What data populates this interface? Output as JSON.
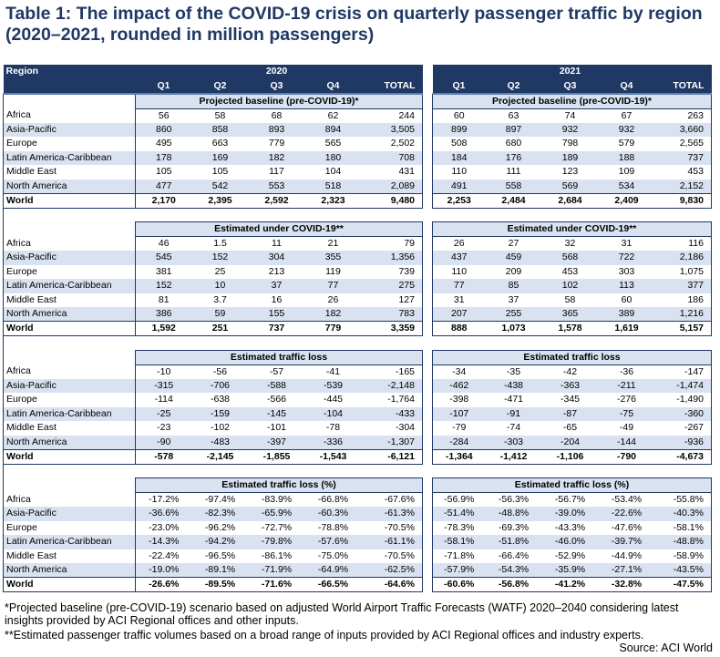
{
  "title": "Table 1: The impact of the COVID-19 crisis on quarterly passenger traffic by region (2020–2021, rounded in million passengers)",
  "header": {
    "region_label": "Region",
    "year_left": "2020",
    "year_right": "2021",
    "quarters": [
      "Q1",
      "Q2",
      "Q3",
      "Q4",
      "TOTAL"
    ]
  },
  "sections": [
    {
      "name": "Projected baseline (pre-COVID-19)*",
      "rows": [
        {
          "region": "Africa",
          "y2020": [
            "56",
            "58",
            "68",
            "62",
            "244"
          ],
          "y2021": [
            "60",
            "63",
            "74",
            "67",
            "263"
          ]
        },
        {
          "region": "Asia-Pacific",
          "y2020": [
            "860",
            "858",
            "893",
            "894",
            "3,505"
          ],
          "y2021": [
            "899",
            "897",
            "932",
            "932",
            "3,660"
          ]
        },
        {
          "region": "Europe",
          "y2020": [
            "495",
            "663",
            "779",
            "565",
            "2,502"
          ],
          "y2021": [
            "508",
            "680",
            "798",
            "579",
            "2,565"
          ]
        },
        {
          "region": "Latin America-Caribbean",
          "y2020": [
            "178",
            "169",
            "182",
            "180",
            "708"
          ],
          "y2021": [
            "184",
            "176",
            "189",
            "188",
            "737"
          ]
        },
        {
          "region": "Middle East",
          "y2020": [
            "105",
            "105",
            "117",
            "104",
            "431"
          ],
          "y2021": [
            "110",
            "111",
            "123",
            "109",
            "453"
          ]
        },
        {
          "region": "North America",
          "y2020": [
            "477",
            "542",
            "553",
            "518",
            "2,089"
          ],
          "y2021": [
            "491",
            "558",
            "569",
            "534",
            "2,152"
          ]
        },
        {
          "region": "World",
          "y2020": [
            "2,170",
            "2,395",
            "2,592",
            "2,323",
            "9,480"
          ],
          "y2021": [
            "2,253",
            "2,484",
            "2,684",
            "2,409",
            "9,830"
          ]
        }
      ]
    },
    {
      "name": "Estimated under COVID-19**",
      "rows": [
        {
          "region": "Africa",
          "y2020": [
            "46",
            "1.5",
            "11",
            "21",
            "79"
          ],
          "y2021": [
            "26",
            "27",
            "32",
            "31",
            "116"
          ]
        },
        {
          "region": "Asia-Pacific",
          "y2020": [
            "545",
            "152",
            "304",
            "355",
            "1,356"
          ],
          "y2021": [
            "437",
            "459",
            "568",
            "722",
            "2,186"
          ]
        },
        {
          "region": "Europe",
          "y2020": [
            "381",
            "25",
            "213",
            "119",
            "739"
          ],
          "y2021": [
            "110",
            "209",
            "453",
            "303",
            "1,075"
          ]
        },
        {
          "region": "Latin America-Caribbean",
          "y2020": [
            "152",
            "10",
            "37",
            "77",
            "275"
          ],
          "y2021": [
            "77",
            "85",
            "102",
            "113",
            "377"
          ]
        },
        {
          "region": "Middle East",
          "y2020": [
            "81",
            "3.7",
            "16",
            "26",
            "127"
          ],
          "y2021": [
            "31",
            "37",
            "58",
            "60",
            "186"
          ]
        },
        {
          "region": "North America",
          "y2020": [
            "386",
            "59",
            "155",
            "182",
            "783"
          ],
          "y2021": [
            "207",
            "255",
            "365",
            "389",
            "1,216"
          ]
        },
        {
          "region": "World",
          "y2020": [
            "1,592",
            "251",
            "737",
            "779",
            "3,359"
          ],
          "y2021": [
            "888",
            "1,073",
            "1,578",
            "1,619",
            "5,157"
          ]
        }
      ]
    },
    {
      "name": "Estimated traffic loss",
      "rows": [
        {
          "region": "Africa",
          "y2020": [
            "-10",
            "-56",
            "-57",
            "-41",
            "-165"
          ],
          "y2021": [
            "-34",
            "-35",
            "-42",
            "-36",
            "-147"
          ]
        },
        {
          "region": "Asia-Pacific",
          "y2020": [
            "-315",
            "-706",
            "-588",
            "-539",
            "-2,148"
          ],
          "y2021": [
            "-462",
            "-438",
            "-363",
            "-211",
            "-1,474"
          ]
        },
        {
          "region": "Europe",
          "y2020": [
            "-114",
            "-638",
            "-566",
            "-445",
            "-1,764"
          ],
          "y2021": [
            "-398",
            "-471",
            "-345",
            "-276",
            "-1,490"
          ]
        },
        {
          "region": "Latin America-Caribbean",
          "y2020": [
            "-25",
            "-159",
            "-145",
            "-104",
            "-433"
          ],
          "y2021": [
            "-107",
            "-91",
            "-87",
            "-75",
            "-360"
          ]
        },
        {
          "region": "Middle East",
          "y2020": [
            "-23",
            "-102",
            "-101",
            "-78",
            "-304"
          ],
          "y2021": [
            "-79",
            "-74",
            "-65",
            "-49",
            "-267"
          ]
        },
        {
          "region": "North America",
          "y2020": [
            "-90",
            "-483",
            "-397",
            "-336",
            "-1,307"
          ],
          "y2021": [
            "-284",
            "-303",
            "-204",
            "-144",
            "-936"
          ]
        },
        {
          "region": "World",
          "y2020": [
            "-578",
            "-2,145",
            "-1,855",
            "-1,543",
            "-6,121"
          ],
          "y2021": [
            "-1,364",
            "-1,412",
            "-1,106",
            "-790",
            "-4,673"
          ]
        }
      ]
    },
    {
      "name": "Estimated traffic loss (%)",
      "rows": [
        {
          "region": "Africa",
          "y2020": [
            "-17.2%",
            "-97.4%",
            "-83.9%",
            "-66.8%",
            "-67.6%"
          ],
          "y2021": [
            "-56.9%",
            "-56.3%",
            "-56.7%",
            "-53.4%",
            "-55.8%"
          ]
        },
        {
          "region": "Asia-Pacific",
          "y2020": [
            "-36.6%",
            "-82.3%",
            "-65.9%",
            "-60.3%",
            "-61.3%"
          ],
          "y2021": [
            "-51.4%",
            "-48.8%",
            "-39.0%",
            "-22.6%",
            "-40.3%"
          ]
        },
        {
          "region": "Europe",
          "y2020": [
            "-23.0%",
            "-96.2%",
            "-72.7%",
            "-78.8%",
            "-70.5%"
          ],
          "y2021": [
            "-78.3%",
            "-69.3%",
            "-43.3%",
            "-47.6%",
            "-58.1%"
          ]
        },
        {
          "region": "Latin America-Caribbean",
          "y2020": [
            "-14.3%",
            "-94.2%",
            "-79.8%",
            "-57.6%",
            "-61.1%"
          ],
          "y2021": [
            "-58.1%",
            "-51.8%",
            "-46.0%",
            "-39.7%",
            "-48.8%"
          ]
        },
        {
          "region": "Middle East",
          "y2020": [
            "-22.4%",
            "-96.5%",
            "-86.1%",
            "-75.0%",
            "-70.5%"
          ],
          "y2021": [
            "-71.8%",
            "-66.4%",
            "-52.9%",
            "-44.9%",
            "-58.9%"
          ]
        },
        {
          "region": "North America",
          "y2020": [
            "-19.0%",
            "-89.1%",
            "-71.9%",
            "-64.9%",
            "-62.5%"
          ],
          "y2021": [
            "-57.9%",
            "-54.3%",
            "-35.9%",
            "-27.1%",
            "-43.5%"
          ]
        },
        {
          "region": "World",
          "y2020": [
            "-26.6%",
            "-89.5%",
            "-71.6%",
            "-66.5%",
            "-64.6%"
          ],
          "y2021": [
            "-60.6%",
            "-56.8%",
            "-41.2%",
            "-32.8%",
            "-47.5%"
          ]
        }
      ]
    }
  ],
  "footnotes": {
    "note1": "*Projected baseline (pre-COVID-19) scenario based on adjusted World Airport Traffic Forecasts (WATF) 2020–2040 considering latest insights provided by ACI Regional offices and other inputs.",
    "note2": "**Estimated passenger traffic volumes based on a broad range of inputs provided by ACI Regional offices and industry experts.",
    "source": "Source: ACI World"
  },
  "colors": {
    "title": "#1f3864",
    "header_bg": "#1f3864",
    "band": "#d9e2f0"
  }
}
